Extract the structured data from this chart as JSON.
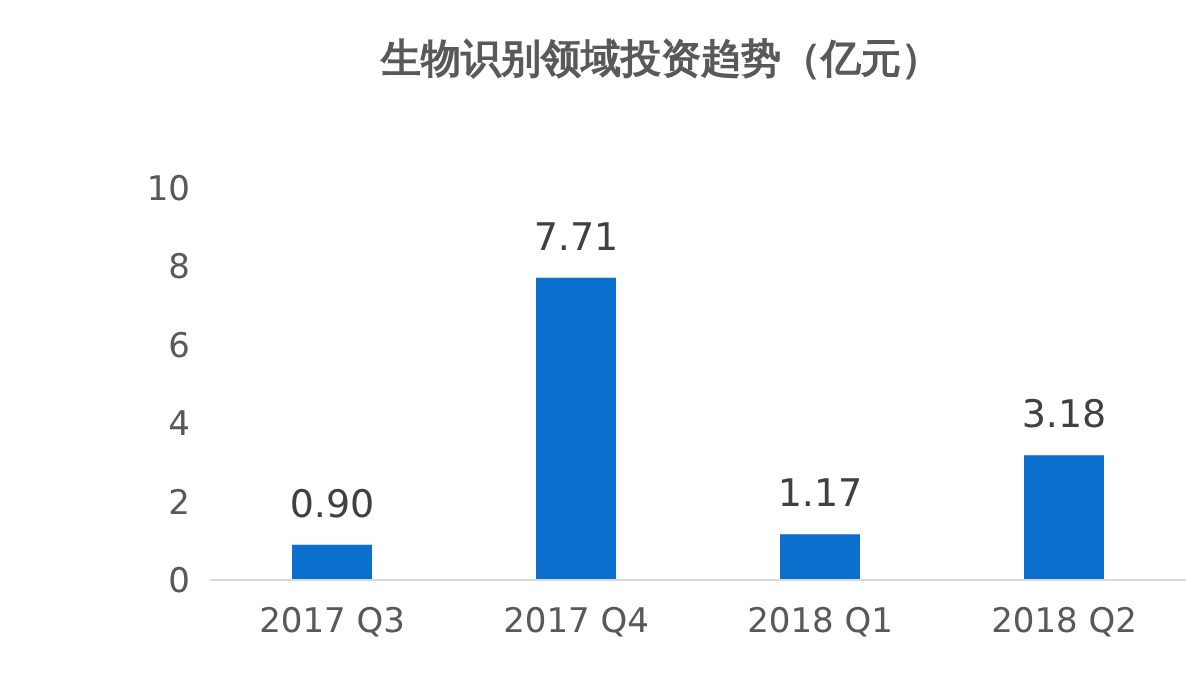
{
  "chart_data": {
    "type": "bar",
    "title": "生物识别领域投资趋势（亿元）",
    "categories": [
      "2017 Q3",
      "2017 Q4",
      "2018 Q1",
      "2018 Q2"
    ],
    "values": [
      0.9,
      7.71,
      1.17,
      3.18
    ],
    "value_labels": [
      "0.90",
      "7.71",
      "1.17",
      "3.18"
    ],
    "color": "#0a6fcd",
    "ylim": [
      0,
      10
    ],
    "yticks": [
      0,
      2,
      4,
      6,
      8,
      10
    ],
    "grid": false,
    "legend": false
  }
}
